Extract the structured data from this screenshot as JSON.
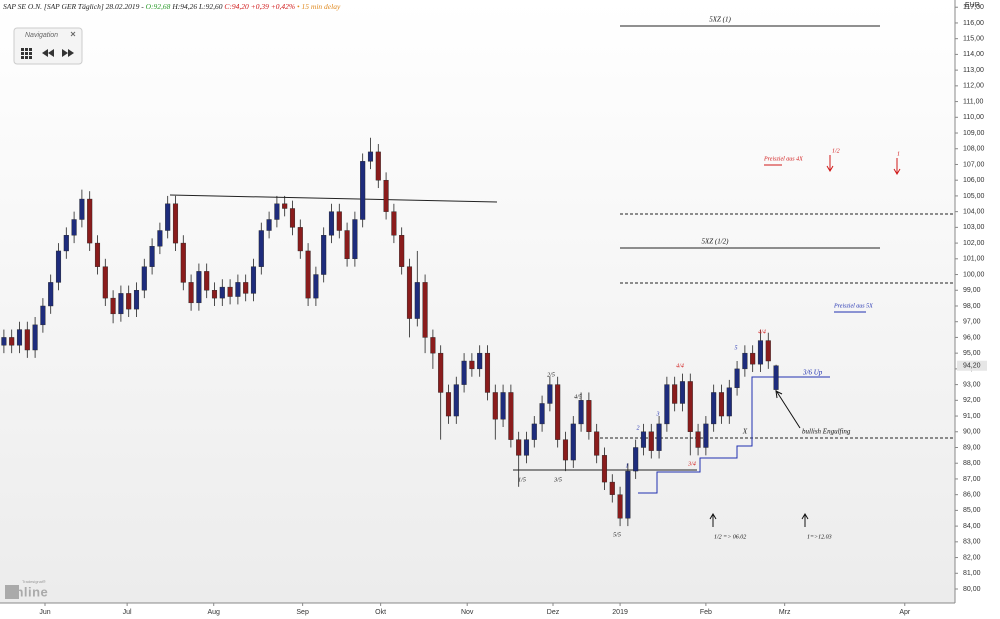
{
  "header": {
    "title": "SAP SE O.N. [SAP GER Täglich] 28.02.2019 -",
    "open": "O:92,68",
    "high": "H:94,26",
    "low": "L:92,60",
    "close": "C:94,20",
    "change": "+0,39 +0,42%",
    "delay": "• 15 min delay"
  },
  "navigation": "Navigation",
  "logo_top": "Tradesignal®",
  "logo": "online",
  "chart_data": {
    "type": "candlestick",
    "unit": "EUR",
    "up_color": "#1e2c7c",
    "down_color": "#8a1c1c",
    "xlim": [
      0,
      122.44
    ],
    "ylim": [
      79.11,
      117.46
    ],
    "xticks": [
      {
        "value": 5.77,
        "label": "Jun"
      },
      {
        "value": 16.3,
        "label": "Jul"
      },
      {
        "value": 27.4,
        "label": "Aug"
      },
      {
        "value": 38.8,
        "label": "Sep"
      },
      {
        "value": 48.8,
        "label": "Okt"
      },
      {
        "value": 59.9,
        "label": "Nov"
      },
      {
        "value": 70.9,
        "label": "Dez"
      },
      {
        "value": 79.5,
        "label": "2019"
      },
      {
        "value": 90.5,
        "label": "Feb"
      },
      {
        "value": 100.6,
        "label": "Mrz"
      },
      {
        "value": 116.0,
        "label": "Apr"
      }
    ],
    "yticks": [
      {
        "value": 80,
        "label": "80,00"
      },
      {
        "value": 81,
        "label": "81,00"
      },
      {
        "value": 82,
        "label": "82,00"
      },
      {
        "value": 83,
        "label": "83,00"
      },
      {
        "value": 84,
        "label": "84,00"
      },
      {
        "value": 85,
        "label": "85,00"
      },
      {
        "value": 86,
        "label": "86,00"
      },
      {
        "value": 87,
        "label": "87,00"
      },
      {
        "value": 88,
        "label": "88,00"
      },
      {
        "value": 89,
        "label": "89,00"
      },
      {
        "value": 90,
        "label": "90,00"
      },
      {
        "value": 91,
        "label": "91,00"
      },
      {
        "value": 92,
        "label": "92,00"
      },
      {
        "value": 93,
        "label": "93,00"
      },
      {
        "value": 94,
        "label": "94,00"
      },
      {
        "value": 95,
        "label": "95,00"
      },
      {
        "value": 96,
        "label": "96,00"
      },
      {
        "value": 97,
        "label": "97,00"
      },
      {
        "value": 98,
        "label": "98,00"
      },
      {
        "value": 99,
        "label": "99,00"
      },
      {
        "value": 100,
        "label": "100,00"
      },
      {
        "value": 101,
        "label": "101,00"
      },
      {
        "value": 102,
        "label": "102,00"
      },
      {
        "value": 103,
        "label": "103,00"
      },
      {
        "value": 104,
        "label": "104,00"
      },
      {
        "value": 105,
        "label": "105,00"
      },
      {
        "value": 106,
        "label": "106,00"
      },
      {
        "value": 107,
        "label": "107,00"
      },
      {
        "value": 108,
        "label": "108,00"
      },
      {
        "value": 109,
        "label": "109,00"
      },
      {
        "value": 110,
        "label": "110,00"
      },
      {
        "value": 111,
        "label": "111,00"
      },
      {
        "value": 112,
        "label": "112,00"
      },
      {
        "value": 113,
        "label": "113,00"
      },
      {
        "value": 114,
        "label": "114,00"
      },
      {
        "value": 115,
        "label": "115,00"
      },
      {
        "value": 116,
        "label": "116,00"
      },
      {
        "value": 117,
        "label": "117,00"
      }
    ],
    "last_price": {
      "value": 94.2,
      "label": "94,20"
    },
    "open": [
      95.5,
      96,
      95.5,
      96.5,
      95.2,
      96.8,
      98,
      99.5,
      101.5,
      102.5,
      103.5,
      104.8,
      102,
      100.5,
      98.5,
      97.5,
      98.8,
      97.8,
      99,
      100.5,
      101.8,
      102.8,
      104.5,
      102,
      99.5,
      98.2,
      100.2,
      99,
      98.5,
      99.2,
      98.6,
      99.5,
      98.8,
      100.5,
      102.8,
      103.5,
      104.5,
      104.2,
      103,
      101.5,
      98.5,
      100,
      102.5,
      104,
      102.8,
      101,
      103.5,
      107.2,
      107.8,
      106,
      104,
      102.5,
      100.5,
      97.2,
      99.5,
      96,
      95,
      92.5,
      91,
      93,
      94.5,
      94,
      95,
      92.5,
      90.8,
      92.5,
      89.5,
      88.5,
      89.5,
      90.5,
      91.8,
      93,
      89.5,
      88.2,
      90.5,
      92,
      90,
      88.5,
      86.8,
      86,
      84.5,
      87.5,
      89,
      90,
      88.8,
      90.5,
      93,
      91.8,
      93.2,
      90,
      89,
      90.5,
      92.5,
      91,
      92.8,
      94,
      95,
      94.3,
      95.8,
      92.68
    ],
    "high": [
      96.5,
      96.5,
      97,
      97,
      97.3,
      98.5,
      100,
      102,
      103,
      104,
      105.4,
      105.3,
      102.5,
      101,
      99,
      99.3,
      99.3,
      99.5,
      101,
      102.3,
      103.3,
      105,
      105,
      102.5,
      100,
      100.7,
      100.7,
      99.5,
      99.7,
      99.7,
      100,
      100,
      101,
      103.3,
      104,
      105,
      105,
      104.7,
      103.5,
      102,
      100.5,
      103,
      104.5,
      104.5,
      103.3,
      104,
      107.7,
      108.7,
      108.3,
      106.5,
      104.5,
      103,
      101,
      101.5,
      100,
      96.5,
      95.5,
      93,
      93.5,
      95,
      95,
      95.5,
      95.5,
      93,
      93,
      93,
      90,
      90,
      91,
      92.3,
      93.5,
      93.5,
      90,
      91,
      92.5,
      92.5,
      90.5,
      89,
      87.3,
      86.5,
      88,
      89.5,
      90.5,
      90.5,
      91,
      93.5,
      93.5,
      93.7,
      93.7,
      90.5,
      91,
      93,
      93,
      93.3,
      94.5,
      95.5,
      95.5,
      96.5,
      96.3,
      94.26
    ],
    "low": [
      95,
      95,
      95,
      94.7,
      94.7,
      96.3,
      97.5,
      99,
      101,
      102,
      103,
      101.5,
      100,
      98,
      96.9,
      97,
      97.3,
      97.3,
      98.5,
      100,
      101.3,
      102.3,
      101.5,
      99,
      97.7,
      97.7,
      98.5,
      98,
      98,
      98.1,
      98.1,
      98.3,
      98.3,
      100,
      102.3,
      103,
      103.7,
      102.5,
      101,
      98,
      98,
      99.5,
      102,
      102.3,
      100.5,
      100.5,
      103,
      106.7,
      105.5,
      103.5,
      102,
      100,
      96,
      96.7,
      95,
      94,
      89.5,
      90.5,
      90.5,
      92.5,
      93.5,
      93.5,
      92,
      89.5,
      90.3,
      89,
      86.5,
      88,
      89,
      90,
      91.3,
      89,
      87.5,
      87.7,
      90,
      89.5,
      88,
      86.3,
      85.5,
      84,
      84,
      87,
      88.5,
      88.3,
      88.3,
      90,
      91.3,
      91.3,
      88.5,
      88.5,
      88.5,
      90,
      90.5,
      90.5,
      92.3,
      93.5,
      93.8,
      93.8,
      94,
      92.6
    ],
    "close": [
      96,
      95.5,
      96.5,
      95.2,
      96.8,
      98,
      99.5,
      101.5,
      102.5,
      103.5,
      104.8,
      102,
      100.5,
      98.5,
      97.5,
      98.8,
      97.8,
      99,
      100.5,
      101.8,
      102.8,
      104.5,
      102,
      99.5,
      98.2,
      100.2,
      99,
      98.5,
      99.2,
      98.6,
      99.5,
      98.8,
      100.5,
      102.8,
      103.5,
      104.5,
      104.2,
      103,
      101.5,
      98.5,
      100,
      102.5,
      104,
      102.8,
      101,
      103.5,
      107.2,
      107.8,
      106,
      104,
      102.5,
      100.5,
      97.2,
      99.5,
      96,
      95,
      92.5,
      91,
      93,
      94.5,
      94,
      95,
      92.5,
      90.8,
      92.5,
      89.5,
      88.5,
      89.5,
      90.5,
      91.8,
      93,
      89.5,
      88.2,
      90.5,
      92,
      90,
      88.5,
      86.8,
      86,
      84.5,
      87.5,
      89,
      90,
      88.8,
      90.5,
      93,
      91.8,
      93.2,
      90,
      89,
      90.5,
      92.5,
      91,
      92.8,
      94,
      95,
      94.3,
      95.8,
      94.5,
      94.2
    ],
    "annotations": [
      "5XZ (1)",
      "5XZ (1/2)",
      "Preisziel aus 4X",
      "1/2",
      "1",
      "Preisziel aus 5X",
      "4/4",
      "3/6 Up",
      "bullish Engulfing",
      "X",
      "4/4",
      "3/4",
      "2/5",
      "4/5",
      "1/5",
      "3/5",
      "5/5",
      "1/2 => 06.02",
      "1=>12.03",
      "1",
      "2",
      "3",
      "5"
    ]
  }
}
